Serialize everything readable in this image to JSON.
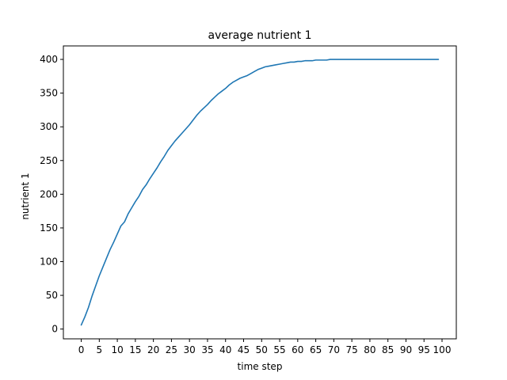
{
  "chart_data": {
    "type": "line",
    "title": "average nutrient 1",
    "xlabel": "time step",
    "ylabel": "nutrient 1",
    "xlim": [
      -4.95,
      103.95
    ],
    "ylim": [
      -14.5,
      420
    ],
    "xticks": [
      0,
      5,
      10,
      15,
      20,
      25,
      30,
      35,
      40,
      45,
      50,
      55,
      60,
      65,
      70,
      75,
      80,
      85,
      90,
      95,
      100
    ],
    "yticks": [
      0,
      50,
      100,
      150,
      200,
      250,
      300,
      350,
      400
    ],
    "grid": false,
    "series": [
      {
        "color": "#1f77b4",
        "x": [
          0,
          1,
          2,
          3,
          4,
          5,
          6,
          7,
          8,
          9,
          10,
          11,
          12,
          13,
          14,
          15,
          16,
          17,
          18,
          19,
          20,
          21,
          22,
          23,
          24,
          25,
          26,
          27,
          28,
          29,
          30,
          31,
          32,
          33,
          34,
          35,
          36,
          37,
          38,
          39,
          40,
          41,
          42,
          43,
          44,
          45,
          46,
          47,
          48,
          49,
          50,
          51,
          52,
          53,
          54,
          55,
          56,
          57,
          58,
          59,
          60,
          61,
          62,
          63,
          64,
          65,
          66,
          67,
          68,
          69,
          70,
          71,
          72,
          73,
          74,
          75,
          76,
          77,
          78,
          79,
          80,
          81,
          82,
          83,
          84,
          85,
          86,
          87,
          88,
          89,
          90,
          91,
          92,
          93,
          94,
          95,
          96,
          97,
          98,
          99
        ],
        "values": [
          6,
          18,
          32,
          49,
          64,
          79,
          92,
          105,
          118,
          129,
          141,
          153,
          159,
          171,
          180,
          189,
          197,
          207,
          214,
          223,
          231,
          239,
          248,
          256,
          265,
          272,
          279,
          285,
          291,
          297,
          303,
          310,
          317,
          323,
          328,
          333,
          339,
          344,
          349,
          353,
          357,
          362,
          366,
          369,
          372,
          374,
          376,
          379,
          382,
          385,
          387,
          389,
          390,
          391,
          392,
          393,
          394,
          395,
          396,
          396,
          397,
          397,
          398,
          398,
          398,
          399,
          399,
          399,
          399,
          400,
          400,
          400,
          400,
          400,
          400,
          400,
          400,
          400,
          400,
          400,
          400,
          400,
          400,
          400,
          400,
          400,
          400,
          400,
          400,
          400,
          400,
          400,
          400,
          400,
          400,
          400,
          400,
          400,
          400,
          400
        ]
      }
    ]
  }
}
